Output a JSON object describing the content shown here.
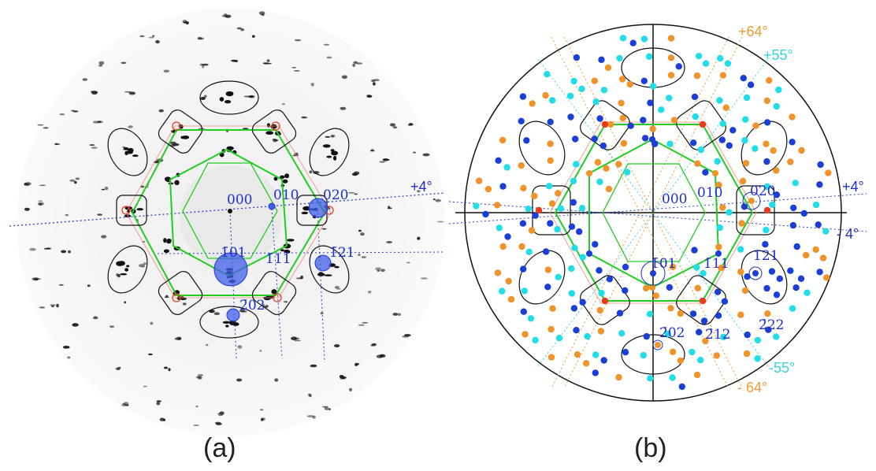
{
  "panels": {
    "a": {
      "caption": "(a)",
      "labels": [
        "000",
        "010",
        "020",
        "1̄01",
        "1̄11",
        "1̄21",
        "2̄02"
      ],
      "angle_label": "+4°"
    },
    "b": {
      "caption": "(b)",
      "labels": [
        "000",
        "010",
        "020",
        "1̄01",
        "1̄11",
        "1̄21",
        "2̄02",
        "2̄12",
        "2̄22"
      ],
      "angle_labels": {
        "plus64": "+64°",
        "plus55": "+55°",
        "plus4": "+4°",
        "minus4": "- 4°",
        "minus55": "-55°",
        "minus64": "- 64°"
      }
    }
  },
  "colors": {
    "label_blue": "#1f2fc8",
    "hexagon_green": "#22cc22",
    "spot_dark_blue": "#1a3fd6",
    "spot_cyan": "#22dde6",
    "spot_orange": "#f0932a",
    "spot_red": "#e83a1e",
    "angle_orange": "#f09a30",
    "angle_cyan": "#33d6e0"
  }
}
